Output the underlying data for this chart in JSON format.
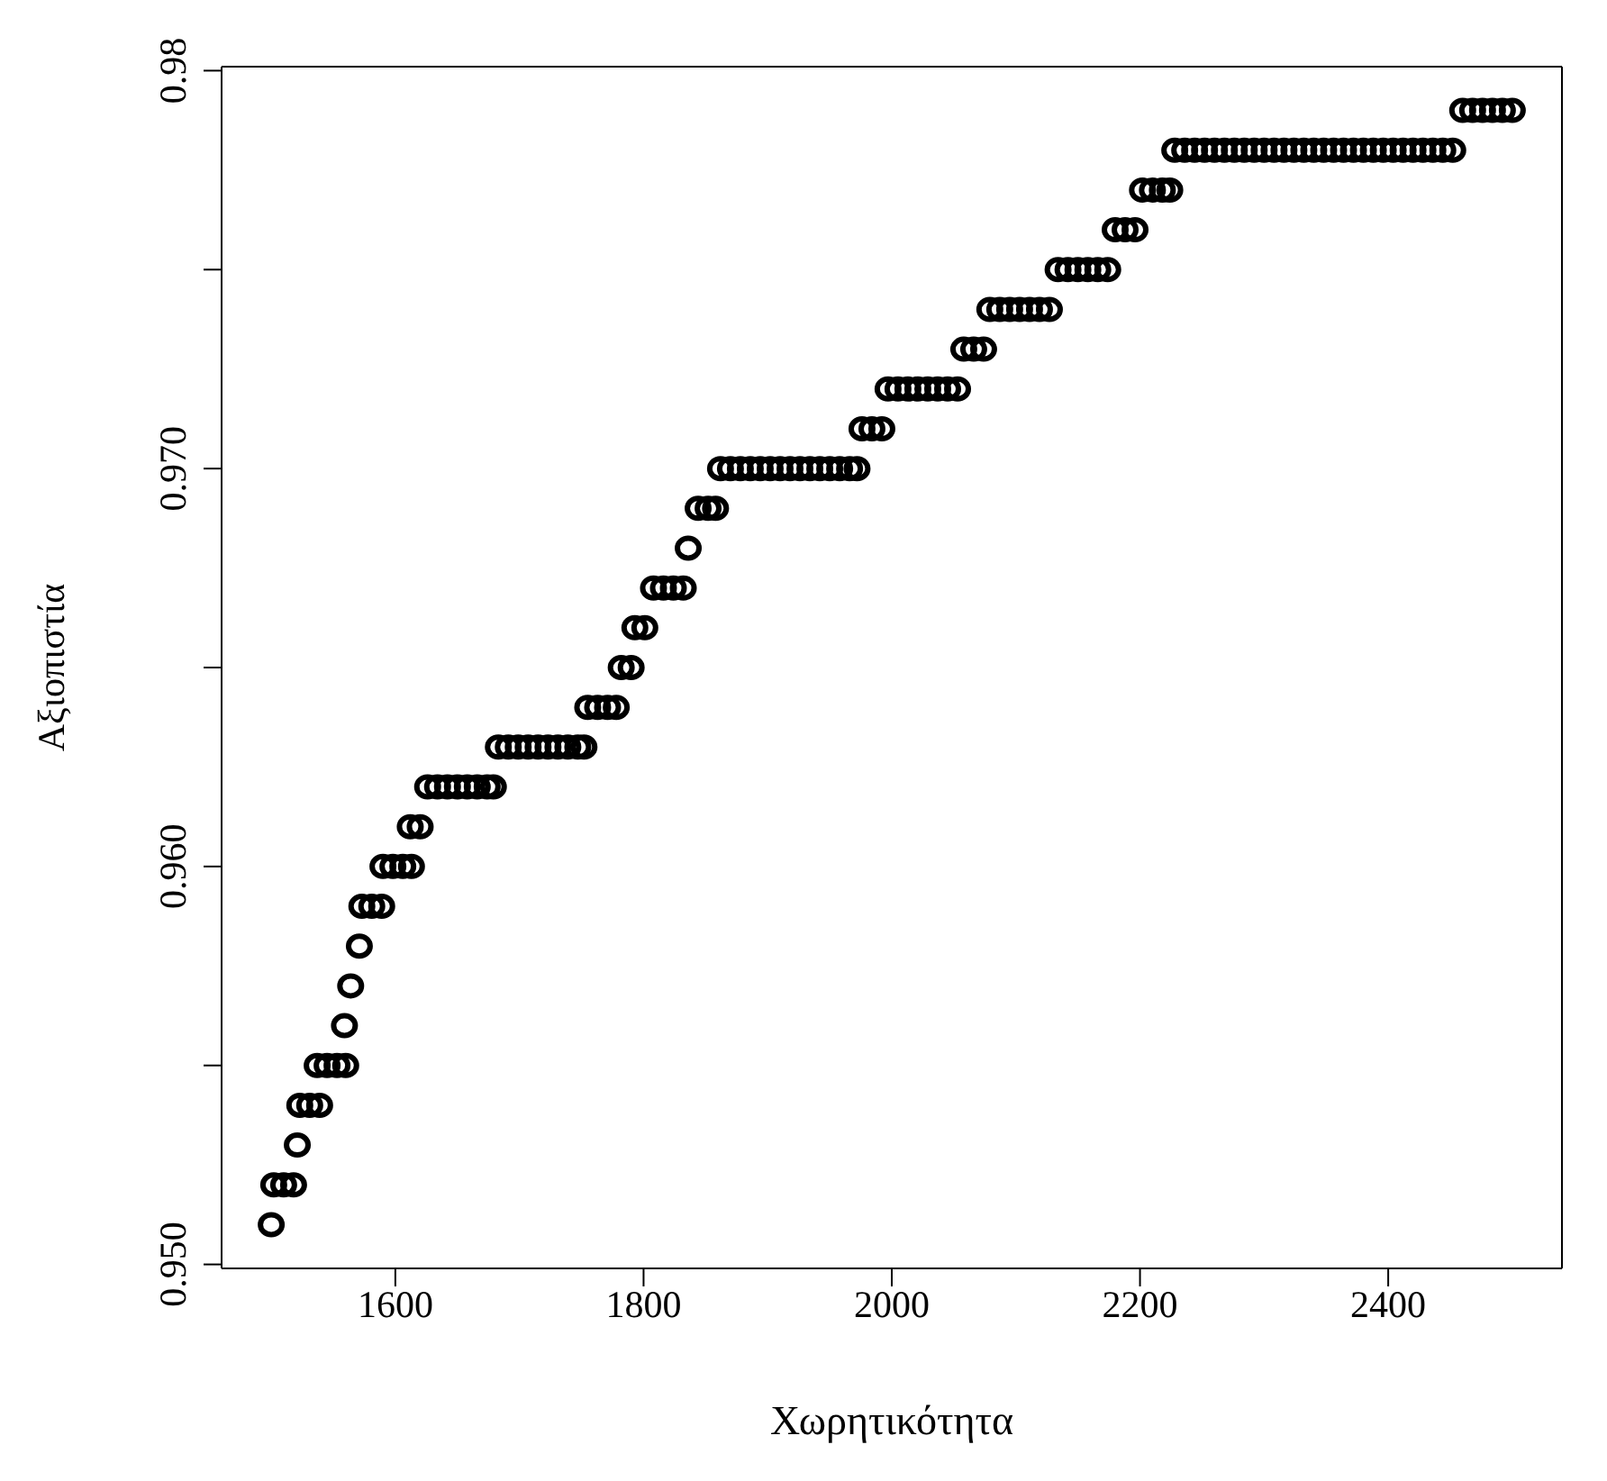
{
  "chart_data": {
    "type": "scatter",
    "xlabel": "Χωρητικότητα",
    "ylabel": "Αξιοπιστία",
    "marker": "circle",
    "xlim": [
      1460,
      2540
    ],
    "xticks": [
      1600,
      1800,
      2000,
      2200,
      2400
    ],
    "ylim": [
      0.9499,
      0.9801
    ],
    "yticks": [
      {
        "value": 0.95,
        "label": "0.950"
      },
      {
        "value": 0.955,
        "label": null
      },
      {
        "value": 0.96,
        "label": "0.960"
      },
      {
        "value": 0.965,
        "label": null
      },
      {
        "value": 0.97,
        "label": "0.970"
      },
      {
        "value": 0.975,
        "label": null
      },
      {
        "value": 0.98,
        "label": "0.98"
      }
    ],
    "series": [
      {
        "color": "#000000",
        "x": [
          1500,
          1502,
          1510,
          1518,
          1521,
          1523,
          1531,
          1539,
          1537,
          1545,
          1553,
          1560,
          1559,
          1564,
          1571,
          1573,
          1581,
          1589,
          1590,
          1598,
          1606,
          1613,
          1612,
          1620,
          1626,
          1634,
          1642,
          1650,
          1658,
          1666,
          1674,
          1679,
          1683,
          1691,
          1699,
          1707,
          1715,
          1723,
          1731,
          1739,
          1747,
          1752,
          1755,
          1763,
          1771,
          1778,
          1782,
          1790,
          1793,
          1801,
          1808,
          1816,
          1824,
          1832,
          1836,
          1844,
          1852,
          1858,
          1862,
          1870,
          1878,
          1886,
          1894,
          1902,
          1910,
          1918,
          1926,
          1934,
          1942,
          1950,
          1958,
          1966,
          1972,
          1976,
          1984,
          1992,
          1997,
          2005,
          2013,
          2021,
          2029,
          2037,
          2045,
          2053,
          2058,
          2066,
          2074,
          2079,
          2087,
          2095,
          2103,
          2111,
          2119,
          2127,
          2134,
          2142,
          2150,
          2158,
          2166,
          2174,
          2180,
          2188,
          2196,
          2202,
          2210,
          2218,
          2224,
          2228,
          2236,
          2244,
          2252,
          2260,
          2268,
          2276,
          2284,
          2292,
          2300,
          2308,
          2316,
          2324,
          2332,
          2340,
          2348,
          2356,
          2364,
          2372,
          2380,
          2388,
          2396,
          2404,
          2412,
          2420,
          2428,
          2436,
          2444,
          2452,
          2460,
          2468,
          2476,
          2484,
          2492,
          2500
        ],
        "values": [
          0.951,
          0.952,
          0.952,
          0.952,
          0.953,
          0.954,
          0.954,
          0.954,
          0.955,
          0.955,
          0.955,
          0.955,
          0.956,
          0.957,
          0.958,
          0.959,
          0.959,
          0.959,
          0.96,
          0.96,
          0.96,
          0.96,
          0.961,
          0.961,
          0.962,
          0.962,
          0.962,
          0.962,
          0.962,
          0.962,
          0.962,
          0.962,
          0.963,
          0.963,
          0.963,
          0.963,
          0.963,
          0.963,
          0.963,
          0.963,
          0.963,
          0.963,
          0.964,
          0.964,
          0.964,
          0.964,
          0.965,
          0.965,
          0.966,
          0.966,
          0.967,
          0.967,
          0.967,
          0.967,
          0.968,
          0.969,
          0.969,
          0.969,
          0.97,
          0.97,
          0.97,
          0.97,
          0.97,
          0.97,
          0.97,
          0.97,
          0.97,
          0.97,
          0.97,
          0.97,
          0.97,
          0.97,
          0.97,
          0.971,
          0.971,
          0.971,
          0.972,
          0.972,
          0.972,
          0.972,
          0.972,
          0.972,
          0.972,
          0.972,
          0.973,
          0.973,
          0.973,
          0.974,
          0.974,
          0.974,
          0.974,
          0.974,
          0.974,
          0.974,
          0.975,
          0.975,
          0.975,
          0.975,
          0.975,
          0.975,
          0.976,
          0.976,
          0.976,
          0.977,
          0.977,
          0.977,
          0.977,
          0.978,
          0.978,
          0.978,
          0.978,
          0.978,
          0.978,
          0.978,
          0.978,
          0.978,
          0.978,
          0.978,
          0.978,
          0.978,
          0.978,
          0.978,
          0.978,
          0.978,
          0.978,
          0.978,
          0.978,
          0.978,
          0.978,
          0.978,
          0.978,
          0.978,
          0.978,
          0.978,
          0.978,
          0.978,
          0.979,
          0.979,
          0.979,
          0.979,
          0.979,
          0.979
        ]
      }
    ]
  }
}
